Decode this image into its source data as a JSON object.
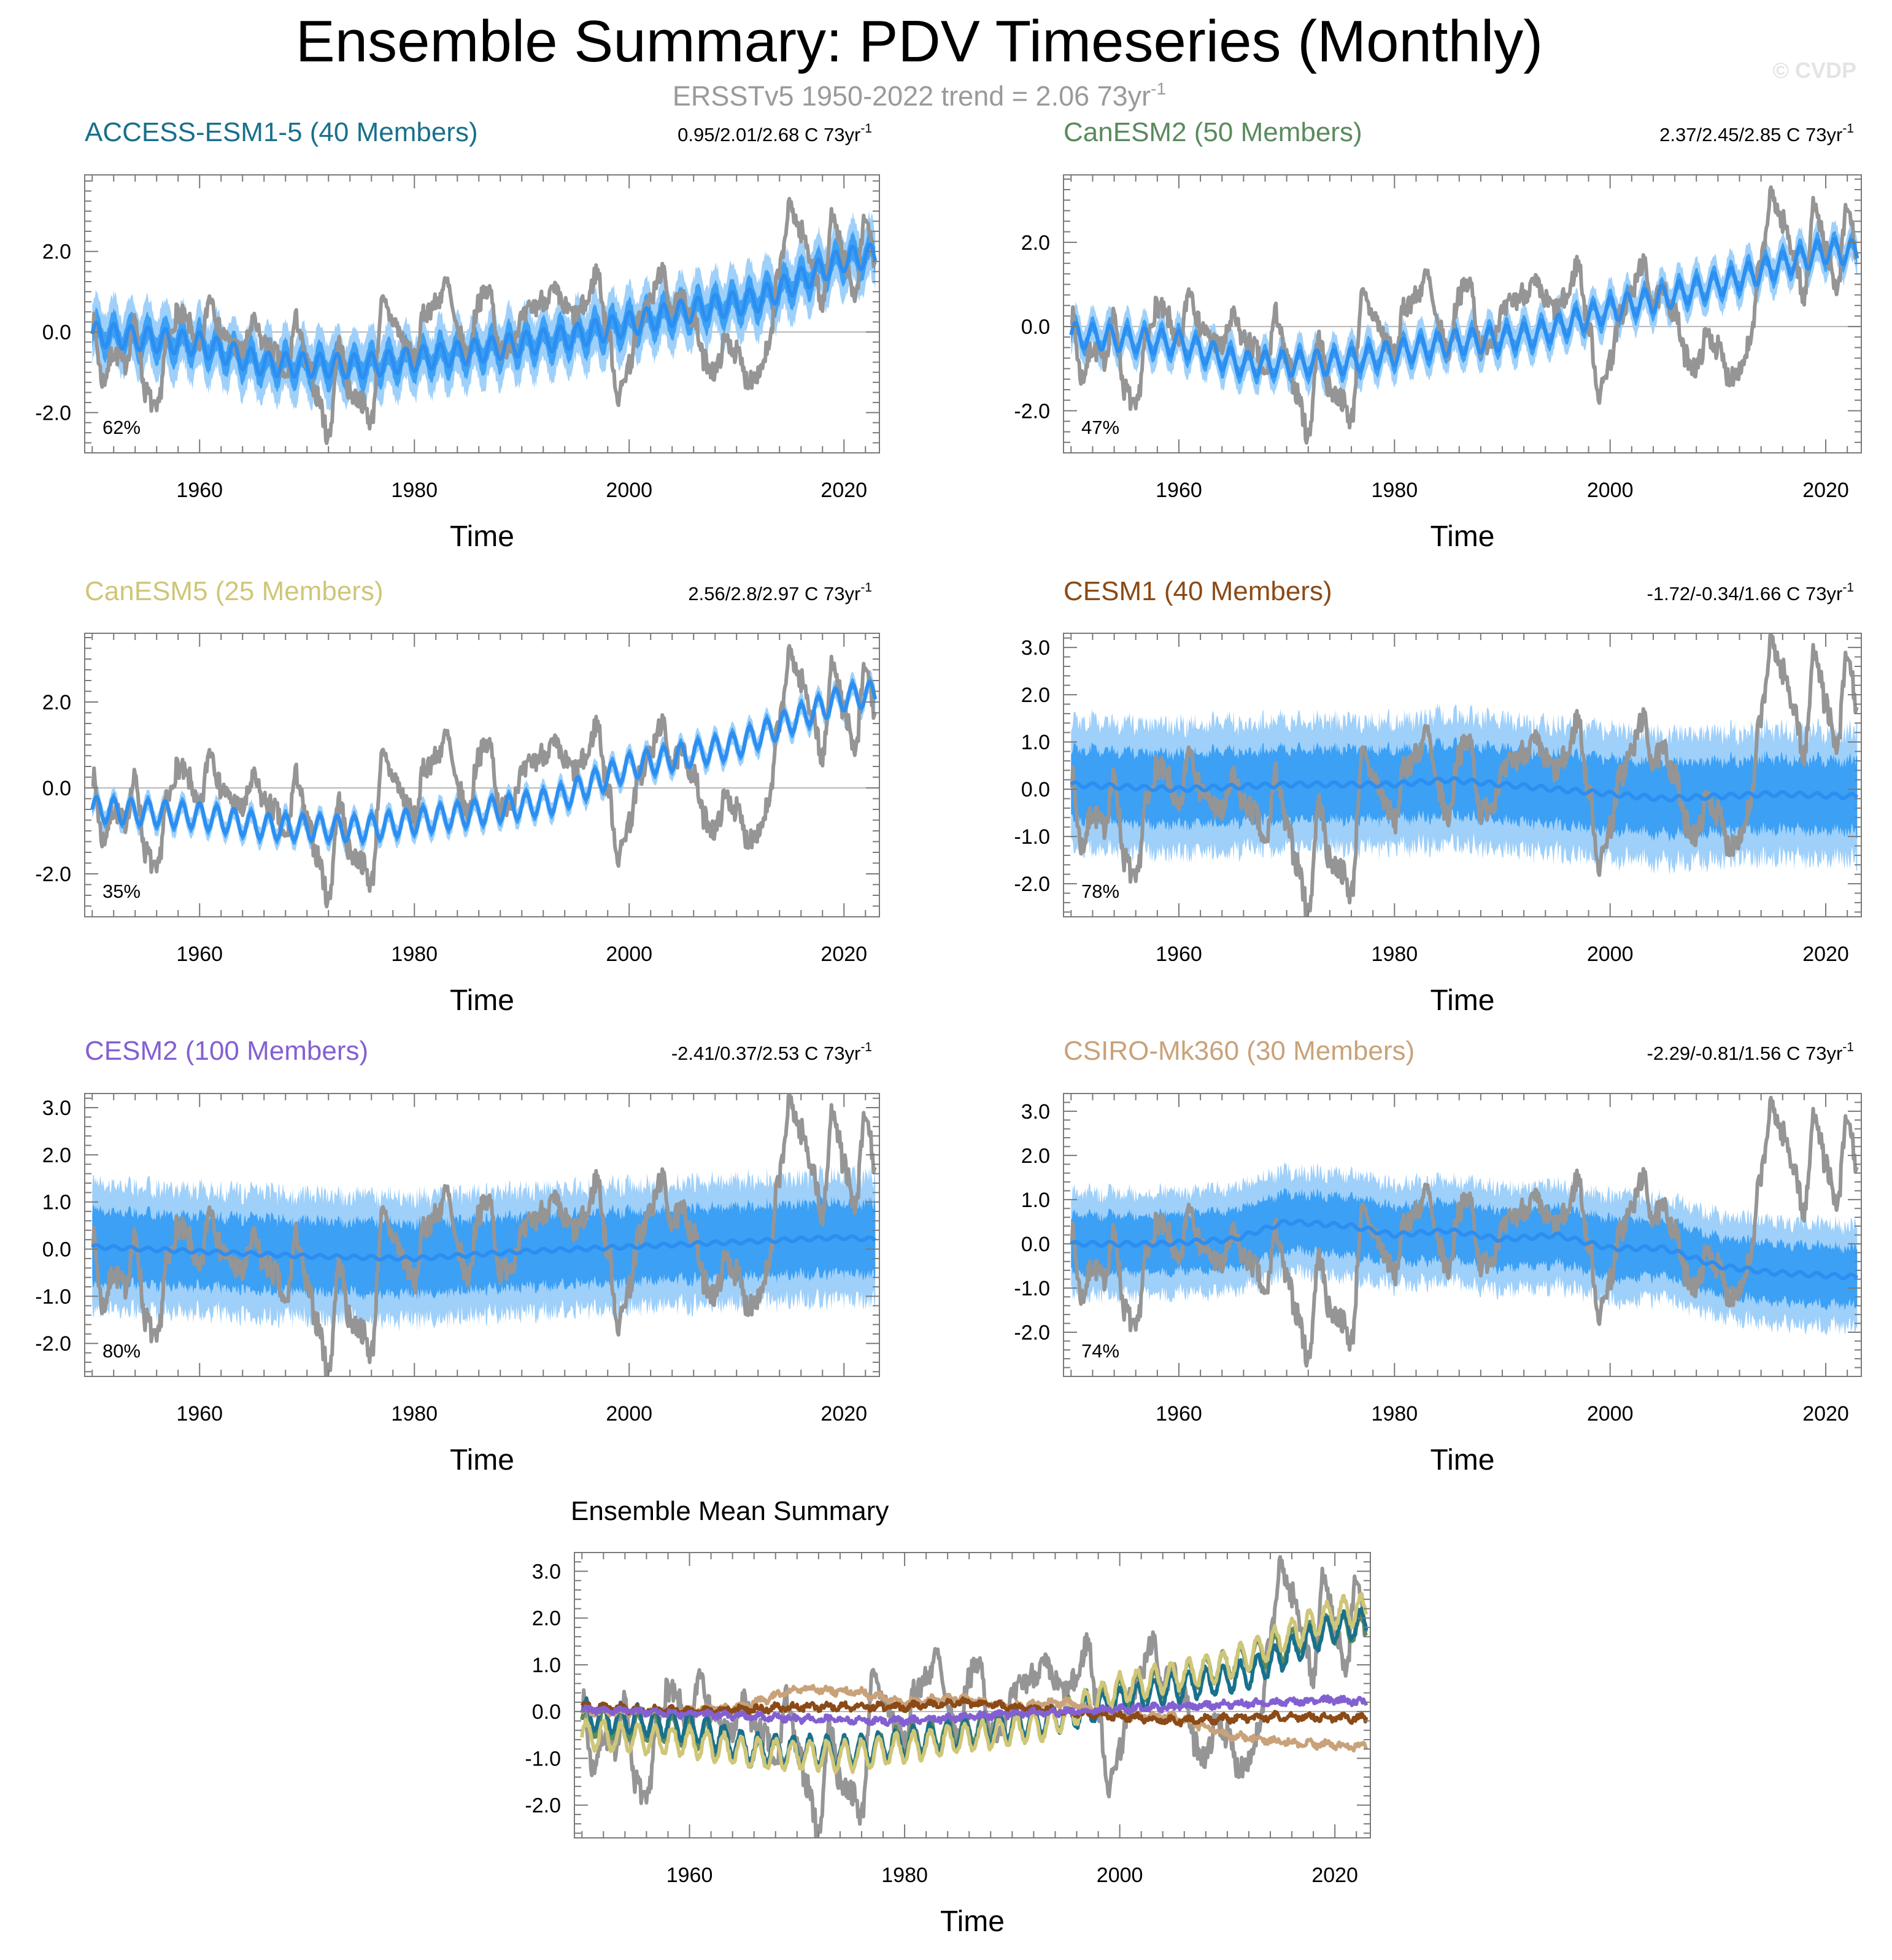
{
  "title": "Ensemble Summary: PDV Timeseries (Monthly)",
  "subtitle": {
    "text": "ERSSTv5 1950-2022 trend = 2.06 73yr",
    "superscript": "-1"
  },
  "copyright": "© CVDP",
  "colors": {
    "observations": "#959595",
    "ensemble_mean": "#2c8ef0",
    "inner_range": "#3ca0f5",
    "outer_range": "#9fd0fa",
    "axis": "#7a7a7a",
    "zero_line": "#b8b8b8"
  },
  "chart_data": [
    {
      "type": "line",
      "id": "access",
      "title": "ACCESS-ESM1-5 (40 Members)",
      "title_color": "#19708c",
      "trend_label": "0.95/2.01/2.68 C 73yr",
      "trend_superscript": "-1",
      "percent_label": "62%",
      "xlabel": "Time",
      "xlim": [
        1949.3,
        2023.3
      ],
      "ylim": [
        -3.0,
        3.9
      ],
      "x_ticks": [
        1960,
        1980,
        2000,
        2020
      ],
      "y_ticks": [
        -2.0,
        0.0,
        2.0
      ],
      "y_tick_labels": [
        "-2.0",
        "0.0",
        "2.0"
      ],
      "series": [
        {
          "name": "ERSSTv5 observations",
          "role": "observations"
        },
        {
          "name": "Ensemble mean",
          "role": "ensemble_mean",
          "mean_anchors": [
            [
              1950,
              -0.05
            ],
            [
              1960,
              -0.3
            ],
            [
              1966,
              -0.8
            ],
            [
              1975,
              -0.85
            ],
            [
              1985,
              -0.5
            ],
            [
              1995,
              -0.1
            ],
            [
              2005,
              0.5
            ],
            [
              2012,
              0.8
            ],
            [
              2020,
              1.8
            ],
            [
              2023,
              1.9
            ]
          ],
          "annual_amp": 0.3,
          "inner_spread": 0.35,
          "outer_spread": 0.75
        }
      ]
    },
    {
      "type": "line",
      "id": "canesm2",
      "title": "CanESM2 (50 Members)",
      "title_color": "#5a8a5e",
      "trend_label": "2.37/2.45/2.85 C 73yr",
      "trend_superscript": "-1",
      "percent_label": "47%",
      "xlabel": "Time",
      "xlim": [
        1949.3,
        2023.3
      ],
      "ylim": [
        -3.0,
        3.6
      ],
      "x_ticks": [
        1960,
        1980,
        2000,
        2020
      ],
      "y_ticks": [
        -2.0,
        0.0,
        2.0
      ],
      "y_tick_labels": [
        "-2.0",
        "0.0",
        "2.0"
      ],
      "series": [
        {
          "name": "ERSSTv5 observations",
          "role": "observations"
        },
        {
          "name": "Ensemble mean",
          "role": "ensemble_mean",
          "mean_anchors": [
            [
              1950,
              -0.2
            ],
            [
              1960,
              -0.4
            ],
            [
              1966,
              -0.9
            ],
            [
              1975,
              -0.85
            ],
            [
              1985,
              -0.4
            ],
            [
              1993,
              -0.2
            ],
            [
              2000,
              0.4
            ],
            [
              2010,
              1.0
            ],
            [
              2020,
              1.8
            ],
            [
              2023,
              1.75
            ]
          ],
          "annual_amp": 0.3,
          "inner_spread": 0.2,
          "outer_spread": 0.45
        }
      ]
    },
    {
      "type": "line",
      "id": "canesm5",
      "title": "CanESM5 (25 Members)",
      "title_color": "#cfc678",
      "trend_label": "2.56/2.8/2.97 C 73yr",
      "trend_superscript": "-1",
      "percent_label": "35%",
      "xlabel": "Time",
      "xlim": [
        1949.3,
        2023.3
      ],
      "ylim": [
        -3.0,
        3.6
      ],
      "x_ticks": [
        1960,
        1980,
        2000,
        2020
      ],
      "y_ticks": [
        -2.0,
        0.0,
        2.0
      ],
      "y_tick_labels": [
        "-2.0",
        "0.0",
        "2.0"
      ],
      "series": [
        {
          "name": "ERSSTv5 observations",
          "role": "observations"
        },
        {
          "name": "Ensemble mean",
          "role": "ensemble_mean",
          "mean_anchors": [
            [
              1950,
              -0.5
            ],
            [
              1960,
              -0.65
            ],
            [
              1966,
              -0.9
            ],
            [
              1975,
              -0.95
            ],
            [
              1985,
              -0.6
            ],
            [
              1993,
              -0.3
            ],
            [
              2000,
              0.5
            ],
            [
              2010,
              1.0
            ],
            [
              2020,
              2.1
            ],
            [
              2023,
              2.2
            ]
          ],
          "annual_amp": 0.3,
          "inner_spread": 0.12,
          "outer_spread": 0.25
        }
      ]
    },
    {
      "type": "line",
      "id": "cesm1",
      "title": "CESM1 (40 Members)",
      "title_color": "#8b4a16",
      "trend_label": "-1.72/-0.34/1.66 C 73yr",
      "trend_superscript": "-1",
      "percent_label": "78%",
      "xlabel": "Time",
      "xlim": [
        1949.3,
        2023.3
      ],
      "ylim": [
        -2.7,
        3.3
      ],
      "x_ticks": [
        1960,
        1980,
        2000,
        2020
      ],
      "y_ticks": [
        -2.0,
        -1.0,
        0.0,
        1.0,
        2.0,
        3.0
      ],
      "y_tick_labels": [
        "-2.0",
        "-1.0",
        "0.0",
        "1.0",
        "2.0",
        "3.0"
      ],
      "series": [
        {
          "name": "ERSSTv5 observations",
          "role": "observations"
        },
        {
          "name": "Ensemble mean",
          "role": "ensemble_mean",
          "mean_anchors": [
            [
              1950,
              0.1
            ],
            [
              1960,
              0.0
            ],
            [
              1970,
              0.1
            ],
            [
              1980,
              0.1
            ],
            [
              1985,
              0.2
            ],
            [
              1995,
              0.0
            ],
            [
              2005,
              -0.2
            ],
            [
              2015,
              -0.1
            ],
            [
              2023,
              -0.15
            ]
          ],
          "annual_amp": 0.05,
          "inner_spread": 0.75,
          "outer_spread": 1.35
        }
      ]
    },
    {
      "type": "line",
      "id": "cesm2",
      "title": "CESM2 (100 Members)",
      "title_color": "#8360d2",
      "trend_label": "-2.41/0.37/2.53 C 73yr",
      "trend_superscript": "-1",
      "percent_label": "80%",
      "xlabel": "Time",
      "xlim": [
        1949.3,
        2023.3
      ],
      "ylim": [
        -2.7,
        3.3
      ],
      "x_ticks": [
        1960,
        1980,
        2000,
        2020
      ],
      "y_ticks": [
        -2.0,
        -1.0,
        0.0,
        1.0,
        2.0,
        3.0
      ],
      "y_tick_labels": [
        "-2.0",
        "-1.0",
        "0.0",
        "1.0",
        "2.0",
        "3.0"
      ],
      "series": [
        {
          "name": "ERSSTv5 observations",
          "role": "observations"
        },
        {
          "name": "Ensemble mean",
          "role": "ensemble_mean",
          "mean_anchors": [
            [
              1950,
              0.05
            ],
            [
              1960,
              -0.05
            ],
            [
              1970,
              -0.15
            ],
            [
              1980,
              -0.2
            ],
            [
              1990,
              -0.05
            ],
            [
              2000,
              0.05
            ],
            [
              2010,
              0.15
            ],
            [
              2020,
              0.25
            ],
            [
              2023,
              0.2
            ]
          ],
          "annual_amp": 0.04,
          "inner_spread": 0.75,
          "outer_spread": 1.3
        }
      ]
    },
    {
      "type": "line",
      "id": "csiro",
      "title": "CSIRO-Mk360 (30 Members)",
      "title_color": "#c9a27a",
      "trend_label": "-2.29/-0.81/1.56 C 73yr",
      "trend_superscript": "-1",
      "percent_label": "74%",
      "xlabel": "Time",
      "xlim": [
        1949.3,
        2023.3
      ],
      "ylim": [
        -3.0,
        3.4
      ],
      "x_ticks": [
        1960,
        1980,
        2000,
        2020
      ],
      "y_ticks": [
        -2.0,
        -1.0,
        0.0,
        1.0,
        2.0,
        3.0
      ],
      "y_tick_labels": [
        "-2.0",
        "-1.0",
        "0.0",
        "1.0",
        "2.0",
        "3.0"
      ],
      "series": [
        {
          "name": "ERSSTv5 observations",
          "role": "observations"
        },
        {
          "name": "Ensemble mean",
          "role": "ensemble_mean",
          "mean_anchors": [
            [
              1950,
              0.0
            ],
            [
              1958,
              0.0
            ],
            [
              1965,
              0.1
            ],
            [
              1970,
              0.5
            ],
            [
              1976,
              0.4
            ],
            [
              1980,
              0.2
            ],
            [
              1985,
              0.3
            ],
            [
              1990,
              0.1
            ],
            [
              1995,
              0.2
            ],
            [
              2000,
              -0.1
            ],
            [
              2005,
              -0.1
            ],
            [
              2010,
              -0.5
            ],
            [
              2015,
              -0.65
            ],
            [
              2023,
              -0.75
            ]
          ],
          "annual_amp": 0.05,
          "inner_spread": 0.65,
          "outer_spread": 1.15
        }
      ]
    },
    {
      "type": "line",
      "id": "summary",
      "title": "Ensemble Mean Summary",
      "title_color": "#000000",
      "xlabel": "Time",
      "xlim": [
        1949.3,
        2023.3
      ],
      "ylim": [
        -2.7,
        3.4
      ],
      "x_ticks": [
        1960,
        1980,
        2000,
        2020
      ],
      "y_ticks": [
        -2.0,
        -1.0,
        0.0,
        1.0,
        2.0,
        3.0
      ],
      "y_tick_labels": [
        "-2.0",
        "-1.0",
        "0.0",
        "1.0",
        "2.0",
        "3.0"
      ],
      "series": [
        {
          "name": "ERSSTv5",
          "color": "#959595",
          "role": "observations"
        },
        {
          "name": "CanESM2",
          "color": "#5a8a5e",
          "role": "model_mean",
          "mean_anchors": [
            [
              1950,
              -0.2
            ],
            [
              1960,
              -0.4
            ],
            [
              1966,
              -0.9
            ],
            [
              1975,
              -0.85
            ],
            [
              1985,
              -0.4
            ],
            [
              1993,
              -0.2
            ],
            [
              2000,
              0.4
            ],
            [
              2010,
              1.0
            ],
            [
              2020,
              1.8
            ],
            [
              2023,
              1.75
            ]
          ],
          "annual_amp": 0.3
        },
        {
          "name": "ACCESS-ESM1-5",
          "color": "#19708c",
          "role": "model_mean",
          "mean_anchors": [
            [
              1950,
              -0.05
            ],
            [
              1960,
              -0.3
            ],
            [
              1966,
              -0.8
            ],
            [
              1975,
              -0.85
            ],
            [
              1985,
              -0.5
            ],
            [
              1995,
              -0.1
            ],
            [
              2005,
              0.5
            ],
            [
              2012,
              0.8
            ],
            [
              2020,
              1.8
            ],
            [
              2023,
              1.9
            ]
          ],
          "annual_amp": 0.3
        },
        {
          "name": "CanESM5",
          "color": "#cfc678",
          "role": "model_mean",
          "mean_anchors": [
            [
              1950,
              -0.5
            ],
            [
              1960,
              -0.65
            ],
            [
              1966,
              -0.9
            ],
            [
              1975,
              -0.95
            ],
            [
              1985,
              -0.6
            ],
            [
              1993,
              -0.3
            ],
            [
              2000,
              0.5
            ],
            [
              2010,
              1.0
            ],
            [
              2020,
              2.1
            ],
            [
              2023,
              2.2
            ]
          ],
          "annual_amp": 0.3
        },
        {
          "name": "CSIRO-Mk360",
          "color": "#c9a27a",
          "role": "model_mean",
          "mean_anchors": [
            [
              1950,
              0.0
            ],
            [
              1958,
              0.0
            ],
            [
              1965,
              0.1
            ],
            [
              1970,
              0.5
            ],
            [
              1976,
              0.4
            ],
            [
              1980,
              0.2
            ],
            [
              1985,
              0.3
            ],
            [
              1990,
              0.1
            ],
            [
              1995,
              0.2
            ],
            [
              2000,
              -0.1
            ],
            [
              2005,
              -0.1
            ],
            [
              2010,
              -0.5
            ],
            [
              2015,
              -0.65
            ],
            [
              2023,
              -0.75
            ]
          ],
          "annual_amp": 0.05
        },
        {
          "name": "CESM1",
          "color": "#8b4a16",
          "role": "model_mean",
          "mean_anchors": [
            [
              1950,
              0.1
            ],
            [
              1960,
              0.0
            ],
            [
              1970,
              0.1
            ],
            [
              1980,
              0.1
            ],
            [
              1985,
              0.2
            ],
            [
              1995,
              0.0
            ],
            [
              2005,
              -0.2
            ],
            [
              2015,
              -0.1
            ],
            [
              2023,
              -0.15
            ]
          ],
          "annual_amp": 0.05
        },
        {
          "name": "CESM2",
          "color": "#8360d2",
          "role": "model_mean",
          "mean_anchors": [
            [
              1950,
              0.05
            ],
            [
              1960,
              -0.05
            ],
            [
              1970,
              -0.15
            ],
            [
              1980,
              -0.2
            ],
            [
              1990,
              -0.05
            ],
            [
              2000,
              0.05
            ],
            [
              2010,
              0.15
            ],
            [
              2020,
              0.25
            ],
            [
              2023,
              0.2
            ]
          ],
          "annual_amp": 0.04
        }
      ]
    }
  ],
  "observations_anchors": [
    [
      1950,
      0.3
    ],
    [
      1951,
      -1.2
    ],
    [
      1952,
      -0.5
    ],
    [
      1953,
      -0.8
    ],
    [
      1954,
      0.2
    ],
    [
      1955,
      -1.5
    ],
    [
      1956,
      -2.0
    ],
    [
      1957,
      -0.3
    ],
    [
      1958,
      0.5
    ],
    [
      1959,
      0.2
    ],
    [
      1960,
      -0.5
    ],
    [
      1961,
      0.9
    ],
    [
      1962,
      0.0
    ],
    [
      1963,
      -0.3
    ],
    [
      1964,
      -0.5
    ],
    [
      1965,
      0.2
    ],
    [
      1966,
      -0.3
    ],
    [
      1967,
      -0.5
    ],
    [
      1968,
      -1.2
    ],
    [
      1969,
      0.3
    ],
    [
      1970,
      -0.8
    ],
    [
      1971,
      -1.6
    ],
    [
      1972,
      -2.6
    ],
    [
      1973,
      -0.3
    ],
    [
      1974,
      -1.5
    ],
    [
      1975,
      -1.7
    ],
    [
      1976,
      -2.2
    ],
    [
      1977,
      0.7
    ],
    [
      1978,
      0.3
    ],
    [
      1979,
      -0.2
    ],
    [
      1980,
      -0.7
    ],
    [
      1981,
      0.5
    ],
    [
      1982,
      0.7
    ],
    [
      1983,
      1.2
    ],
    [
      1984,
      0.0
    ],
    [
      1985,
      -0.6
    ],
    [
      1986,
      0.8
    ],
    [
      1987,
      1.0
    ],
    [
      1988,
      -0.5
    ],
    [
      1989,
      -0.3
    ],
    [
      1990,
      0.3
    ],
    [
      1991,
      0.6
    ],
    [
      1992,
      0.8
    ],
    [
      1993,
      1.0
    ],
    [
      1994,
      0.6
    ],
    [
      1995,
      0.4
    ],
    [
      1996,
      0.7
    ],
    [
      1997,
      1.5
    ],
    [
      1998,
      0.0
    ],
    [
      1999,
      -1.6
    ],
    [
      2000,
      -0.8
    ],
    [
      2001,
      0.3
    ],
    [
      2002,
      0.8
    ],
    [
      2003,
      1.5
    ],
    [
      2004,
      0.6
    ],
    [
      2005,
      0.8
    ],
    [
      2006,
      0.3
    ],
    [
      2007,
      -0.7
    ],
    [
      2008,
      -1.0
    ],
    [
      2009,
      -0.2
    ],
    [
      2010,
      -0.5
    ],
    [
      2011,
      -1.2
    ],
    [
      2012,
      -1.0
    ],
    [
      2013,
      -0.4
    ],
    [
      2014,
      1.6
    ],
    [
      2015,
      3.1
    ],
    [
      2016,
      2.5
    ],
    [
      2017,
      1.8
    ],
    [
      2018,
      0.7
    ],
    [
      2019,
      3.0
    ],
    [
      2020,
      1.8
    ],
    [
      2021,
      0.8
    ],
    [
      2022,
      2.8
    ],
    [
      2023,
      1.7
    ]
  ]
}
